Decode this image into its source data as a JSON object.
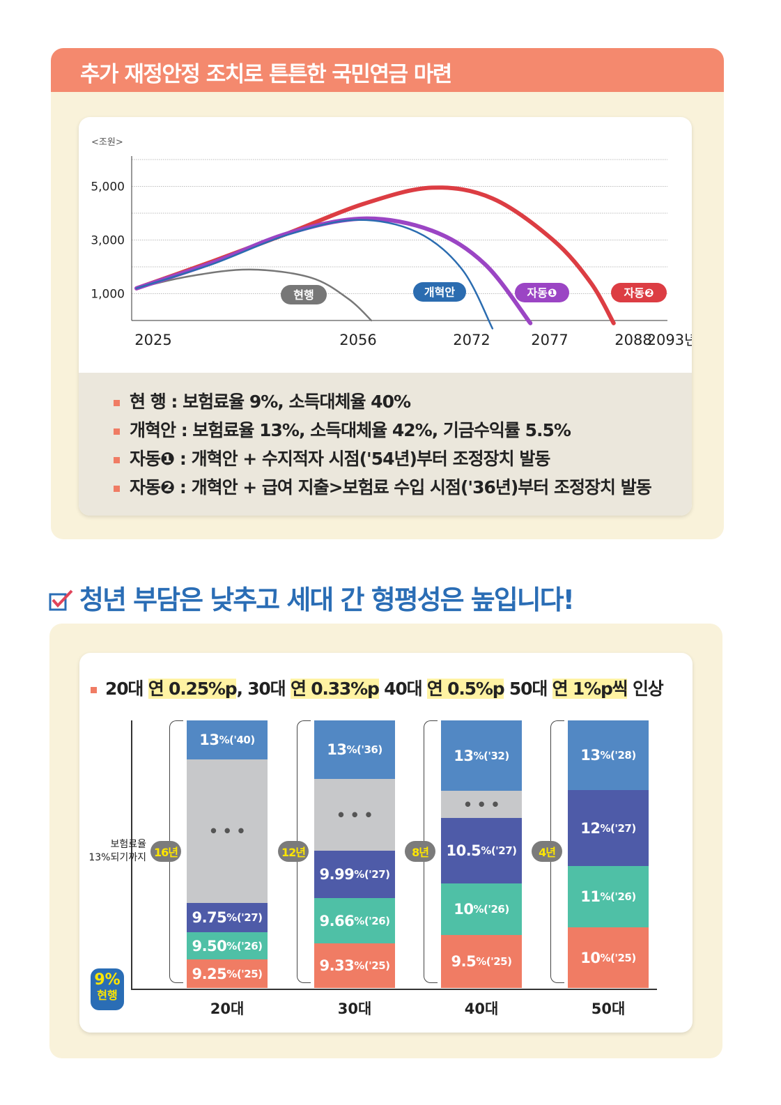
{
  "section1": {
    "title": "추가 재정안정 조치로 튼튼한 국민연금 마련",
    "legend": [
      {
        "name": "현    행",
        "text": " : 보험료율 9%, 소득대체율 40%"
      },
      {
        "name": "개혁안",
        "text": " : 보험료율 13%, 소득대체율 42%, 기금수익률 5.5%"
      },
      {
        "name": "자동❶",
        "text": " : 개혁안 + 수지적자 시점('54년)부터 조정장치 발동"
      },
      {
        "name": "자동❷",
        "text": " : 개혁안 + 급여 지출>보험료 수입 시점('36년)부터 조정장치 발동"
      }
    ]
  },
  "section2": {
    "title": "청년 부담은 낮추고 세대 간 형평성은 높입니다!",
    "heading": [
      {
        "t": "20대 ",
        "hl": false
      },
      {
        "t": "연 0.25%p",
        "hl": true
      },
      {
        "t": ", 30대 ",
        "hl": false
      },
      {
        "t": "연 0.33%p",
        "hl": true
      },
      {
        "t": " 40대 ",
        "hl": false
      },
      {
        "t": "연 0.5%p",
        "hl": true
      },
      {
        "t": " 50대 ",
        "hl": false
      },
      {
        "t": "연 1%p씩",
        "hl": true
      },
      {
        "t": " 인상",
        "hl": false
      }
    ],
    "axis_label_1": "보험료율",
    "axis_label_2": "13%되기까지",
    "current_rate": "9%",
    "current_label": "현행"
  },
  "chart_data": [
    {
      "type": "line",
      "unit_label": "<조원>",
      "yticks": [
        "1,000",
        "3,000",
        "5,000"
      ],
      "ylim": [
        0,
        6000
      ],
      "xlim": [
        2025,
        2093
      ],
      "xticks": [
        "2025",
        "2056",
        "2072",
        "2077",
        "2088",
        "2093년"
      ],
      "grid": true,
      "series": [
        {
          "name": "현행",
          "color": "#777777",
          "points": [
            [
              2025,
              1200
            ],
            [
              2032,
              1650
            ],
            [
              2040,
              1900
            ],
            [
              2048,
              1600
            ],
            [
              2053,
              800
            ],
            [
              2056,
              0
            ]
          ]
        },
        {
          "name": "개혁안",
          "color": "#2b6cb0",
          "points": [
            [
              2025,
              1200
            ],
            [
              2035,
              2100
            ],
            [
              2045,
              3200
            ],
            [
              2054,
              3750
            ],
            [
              2062,
              3300
            ],
            [
              2068,
              1900
            ],
            [
              2072,
              -300
            ]
          ]
        },
        {
          "name": "자동❶",
          "color": "#9b45c4",
          "points": [
            [
              2025,
              1200
            ],
            [
              2035,
              2150
            ],
            [
              2045,
              3250
            ],
            [
              2055,
              3800
            ],
            [
              2064,
              3350
            ],
            [
              2071,
              2100
            ],
            [
              2077,
              -100
            ]
          ]
        },
        {
          "name": "자동❷",
          "color": "#dc3d43",
          "points": [
            [
              2025,
              1200
            ],
            [
              2035,
              2200
            ],
            [
              2045,
              3250
            ],
            [
              2055,
              4350
            ],
            [
              2064,
              4950
            ],
            [
              2072,
              4550
            ],
            [
              2080,
              3000
            ],
            [
              2085,
              1400
            ],
            [
              2088,
              -100
            ]
          ]
        }
      ]
    },
    {
      "type": "bar",
      "stacked": true,
      "categories": [
        "20대",
        "30대",
        "40대",
        "50대"
      ],
      "years_to_13": [
        "16년",
        "12년",
        "8년",
        "4년"
      ],
      "colors": {
        "blue": "#5288c4",
        "grey": "#c7c8ca",
        "indigo": "#4e5ba8",
        "teal": "#4fc0a6",
        "salmon": "#f07c64"
      },
      "stacks": [
        [
          {
            "v": "9.25",
            "y": "('25)",
            "c": "salmon"
          },
          {
            "v": "9.50",
            "y": "('26)",
            "c": "teal"
          },
          {
            "v": "9.75",
            "y": "('27)",
            "c": "indigo"
          },
          {
            "v": "• • •",
            "y": "",
            "c": "grey"
          },
          {
            "v": "13",
            "y": "('40)",
            "c": "blue"
          }
        ],
        [
          {
            "v": "9.33",
            "y": "('25)",
            "c": "salmon"
          },
          {
            "v": "9.66",
            "y": "('26)",
            "c": "teal"
          },
          {
            "v": "9.99",
            "y": "('27)",
            "c": "indigo"
          },
          {
            "v": "• • •",
            "y": "",
            "c": "grey"
          },
          {
            "v": "13",
            "y": "('36)",
            "c": "blue"
          }
        ],
        [
          {
            "v": "9.5",
            "y": "('25)",
            "c": "salmon"
          },
          {
            "v": "10",
            "y": "('26)",
            "c": "teal"
          },
          {
            "v": "10.5",
            "y": "('27)",
            "c": "indigo"
          },
          {
            "v": "• • •",
            "y": "",
            "c": "grey"
          },
          {
            "v": "13",
            "y": "('32)",
            "c": "blue"
          }
        ],
        [
          {
            "v": "10",
            "y": "('25)",
            "c": "salmon"
          },
          {
            "v": "11",
            "y": "('26)",
            "c": "teal"
          },
          {
            "v": "12",
            "y": "('27)",
            "c": "indigo"
          },
          {
            "v": "13",
            "y": "('28)",
            "c": "blue"
          }
        ]
      ]
    }
  ]
}
